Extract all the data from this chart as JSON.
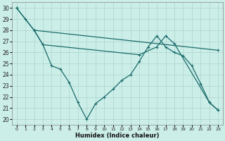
{
  "xlabel": "Humidex (Indice chaleur)",
  "bg_color": "#cceee8",
  "grid_color": "#aad4cc",
  "line_color": "#1a6b6b",
  "xlim": [
    -0.5,
    23.5
  ],
  "ylim": [
    19.5,
    30.5
  ],
  "yticks": [
    20,
    21,
    22,
    23,
    24,
    25,
    26,
    27,
    28,
    29,
    30
  ],
  "xticks": [
    0,
    1,
    2,
    3,
    4,
    5,
    6,
    7,
    8,
    9,
    10,
    11,
    12,
    13,
    14,
    15,
    16,
    17,
    18,
    19,
    20,
    21,
    22,
    23
  ],
  "line1_x": [
    0,
    1,
    2,
    3,
    4,
    5,
    6,
    7,
    8,
    9,
    10,
    11,
    12,
    13,
    14,
    15,
    16,
    17,
    18,
    19,
    20,
    21,
    22,
    23
  ],
  "line1_y": [
    30,
    29,
    28,
    26.7,
    24.8,
    24.5,
    23.3,
    21.5,
    20.0,
    21.4,
    22.0,
    22.7,
    23.5,
    24.0,
    25.2,
    26.5,
    27.5,
    26.5,
    26.0,
    25.7,
    24.8,
    23.2,
    21.5,
    20.8
  ],
  "line2_x": [
    0,
    2,
    23
  ],
  "line2_y": [
    30,
    28,
    26.2
  ],
  "line3_x": [
    2,
    3,
    14,
    16,
    17,
    18,
    22,
    23
  ],
  "line3_y": [
    28,
    26.7,
    25.8,
    26.5,
    27.5,
    26.8,
    21.5,
    20.8
  ]
}
